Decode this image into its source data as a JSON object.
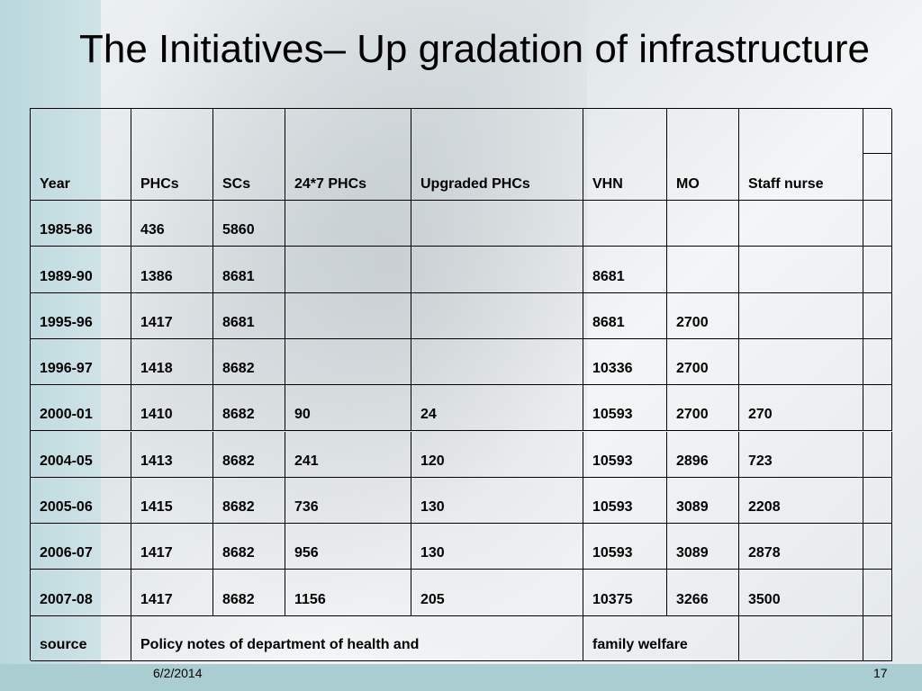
{
  "title": "The Initiatives– Up gradation of infrastructure",
  "table": {
    "header": [
      "Year",
      "PHCs",
      "SCs",
      "24*7 PHCs",
      "Upgraded PHCs",
      "VHN",
      "MO",
      "Staff nurse"
    ],
    "rows": [
      [
        "1985-86",
        436,
        5860,
        null,
        null,
        null,
        null,
        null
      ],
      [
        "1989-90",
        1386,
        8681,
        null,
        null,
        8681,
        null,
        null
      ],
      [
        "1995-96",
        1417,
        8681,
        null,
        null,
        8681,
        2700,
        null
      ],
      [
        "1996-97",
        1418,
        8682,
        null,
        null,
        10336,
        2700,
        null
      ],
      [
        "2000-01",
        1410,
        8682,
        90,
        24,
        10593,
        2700,
        270
      ],
      [
        "2004-05",
        1413,
        8682,
        241,
        120,
        10593,
        2896,
        723
      ],
      [
        "2005-06",
        1415,
        8682,
        736,
        130,
        10593,
        3089,
        2208
      ],
      [
        "2006-07",
        1417,
        8682,
        956,
        130,
        10593,
        3089,
        2878
      ],
      [
        "2007-08",
        1417,
        8682,
        1156,
        205,
        10375,
        3266,
        3500
      ]
    ],
    "source_row": {
      "label": "source",
      "note": "Policy notes of department of health and",
      "note_continued": "family welfare"
    }
  },
  "footer": {
    "date": "6/2/2014",
    "page": "17"
  }
}
